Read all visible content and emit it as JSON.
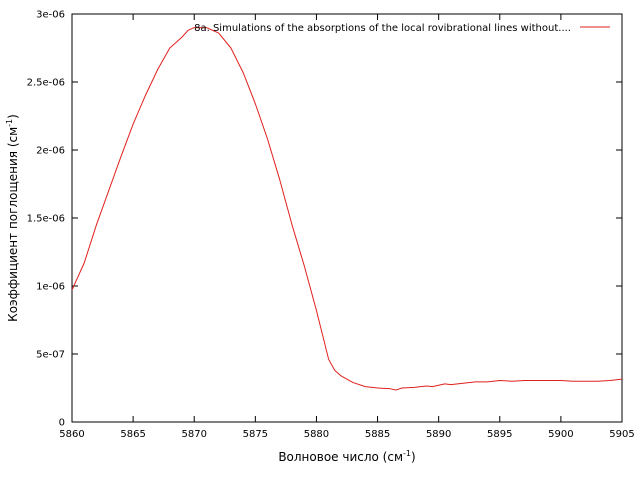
{
  "chart_data": {
    "type": "line",
    "xlabel": "Волновое число (см",
    "xlabel_sup": "-1",
    "xlabel_end": ")",
    "ylabel": "Коэффициент поглощения (см",
    "ylabel_sup": "-1",
    "ylabel_end": ")",
    "xlim": [
      5860,
      5905
    ],
    "ylim": [
      0,
      3e-06
    ],
    "x_ticks": [
      5860,
      5865,
      5870,
      5875,
      5880,
      5885,
      5890,
      5895,
      5900,
      5905
    ],
    "x_tick_labels": [
      "5860",
      "5865",
      "5870",
      "5875",
      "5880",
      "5885",
      "5890",
      "5895",
      "5900",
      "5905"
    ],
    "y_ticks": [
      0,
      5e-07,
      1e-06,
      1.5e-06,
      2e-06,
      2.5e-06,
      3e-06
    ],
    "y_tick_labels": [
      "0",
      "5e-07",
      "1e-06",
      "1.5e-06",
      "2e-06",
      "2.5e-06",
      "3e-06"
    ],
    "grid": false,
    "legend_position": "top-right",
    "series_color": "#e0201c",
    "series": [
      {
        "name": "8a. Simulations of the absorptions of the local rovibrational lines without....",
        "x": [
          5860,
          5861,
          5862,
          5863,
          5864,
          5865,
          5866,
          5867,
          5868,
          5869,
          5869.5,
          5870,
          5871,
          5872,
          5873,
          5874,
          5875,
          5876,
          5877,
          5878,
          5879,
          5880,
          5881,
          5881.5,
          5882,
          5883,
          5884,
          5885,
          5886,
          5886.5,
          5887,
          5888,
          5889,
          5889.5,
          5890,
          5890.5,
          5891,
          5892,
          5893,
          5894,
          5895,
          5896,
          5897,
          5898,
          5899,
          5900,
          5901,
          5902,
          5903,
          5904,
          5905
        ],
        "y": [
          9.7e-07,
          1.17e-06,
          1.45e-06,
          1.7e-06,
          1.95e-06,
          2.19e-06,
          2.4e-06,
          2.59e-06,
          2.75e-06,
          2.83e-06,
          2.88e-06,
          2.9e-06,
          2.9e-06,
          2.86e-06,
          2.75e-06,
          2.57e-06,
          2.34e-06,
          2.08e-06,
          1.78e-06,
          1.45e-06,
          1.15e-06,
          8.2e-07,
          4.6e-07,
          3.8e-07,
          3.4e-07,
          2.9e-07,
          2.6e-07,
          2.5e-07,
          2.45e-07,
          2.35e-07,
          2.5e-07,
          2.55e-07,
          2.65e-07,
          2.6e-07,
          2.7e-07,
          2.8e-07,
          2.75e-07,
          2.85e-07,
          2.95e-07,
          2.95e-07,
          3.05e-07,
          3e-07,
          3.05e-07,
          3.05e-07,
          3.05e-07,
          3.05e-07,
          3e-07,
          3e-07,
          3e-07,
          3.05e-07,
          3.15e-07
        ]
      }
    ]
  }
}
